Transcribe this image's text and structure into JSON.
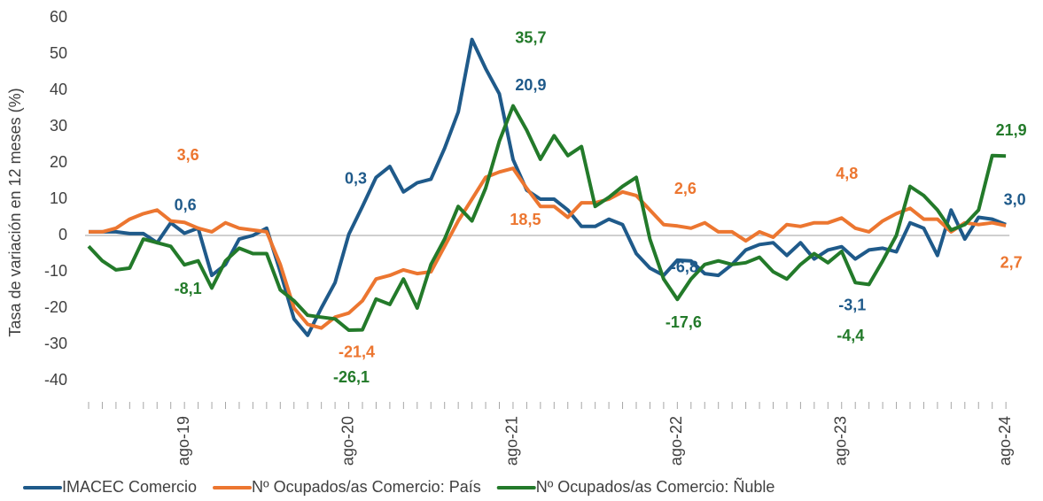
{
  "chart_data": {
    "type": "line",
    "y_label": "Tasa de variación en 12 meses (%)",
    "categories": [
      null,
      null,
      null,
      null,
      null,
      null,
      null,
      "ago-19",
      null,
      null,
      null,
      null,
      null,
      null,
      null,
      null,
      null,
      null,
      null,
      "ago-20",
      null,
      null,
      null,
      null,
      null,
      null,
      null,
      null,
      null,
      null,
      null,
      "ago-21",
      null,
      null,
      null,
      null,
      null,
      null,
      null,
      null,
      null,
      null,
      null,
      "ago-22",
      null,
      null,
      null,
      null,
      null,
      null,
      null,
      null,
      null,
      null,
      null,
      "ago-23",
      null,
      null,
      null,
      null,
      null,
      null,
      null,
      null,
      null,
      null,
      null,
      "ago-24"
    ],
    "ylim": [
      -40,
      60
    ],
    "yticks": [
      -40,
      -30,
      -20,
      -10,
      0,
      10,
      20,
      30,
      40,
      50,
      60
    ],
    "grid": false,
    "legend": "bottom",
    "series": [
      {
        "name": "IMACEC Comercio",
        "color": "#1f5a8a",
        "values": [
          1,
          1,
          1,
          0.5,
          0.5,
          -2,
          3.5,
          0.6,
          2,
          -11,
          -8,
          -1,
          0,
          2,
          -10,
          -23,
          -27.5,
          -20,
          -13,
          0.3,
          8,
          16,
          19,
          12,
          14.5,
          15.5,
          24,
          34,
          54,
          46,
          39,
          20.9,
          12.5,
          10,
          10,
          7,
          2.5,
          2.5,
          4.5,
          3,
          -5,
          -9,
          -11,
          -6.8,
          -7,
          -10.5,
          -11,
          -8,
          -4,
          -2.5,
          -2,
          -5.5,
          -2,
          -6.5,
          -4,
          -3.1,
          -6.5,
          -4,
          -3.5,
          -4.5,
          3.5,
          2,
          -5.5,
          7,
          -1,
          5,
          4.5,
          3
        ],
        "value_labels": [
          null,
          null,
          null,
          null,
          null,
          null,
          null,
          "0,6",
          null,
          null,
          null,
          null,
          null,
          null,
          null,
          null,
          null,
          null,
          null,
          "0,3",
          null,
          null,
          null,
          null,
          null,
          null,
          null,
          null,
          null,
          null,
          null,
          "20,9",
          null,
          null,
          null,
          null,
          null,
          null,
          null,
          null,
          null,
          null,
          null,
          "-6,8",
          null,
          null,
          null,
          null,
          null,
          null,
          null,
          null,
          null,
          null,
          null,
          "-3,1",
          null,
          null,
          null,
          null,
          null,
          null,
          null,
          null,
          null,
          null,
          null,
          "3,0"
        ]
      },
      {
        "name": "Nº Ocupados/as Comercio: País",
        "color": "#ec7630",
        "values": [
          1,
          1,
          2,
          4.5,
          6,
          7,
          4,
          3.6,
          2,
          1,
          3.5,
          2,
          1.5,
          1,
          -8,
          -20,
          -24.5,
          -25.5,
          -22.5,
          -21.4,
          -18,
          -12,
          -11,
          -9.5,
          -10.5,
          -10,
          -3,
          4,
          10,
          16,
          17.5,
          18.5,
          13,
          8,
          8,
          5,
          9,
          9,
          10,
          12,
          11,
          7,
          3,
          2.6,
          2,
          3.5,
          1,
          1,
          -1.5,
          1,
          -0.5,
          3,
          2.5,
          3.5,
          3.5,
          4.8,
          2,
          1,
          4,
          6,
          7.5,
          4.5,
          4.5,
          1,
          3.5,
          3,
          3.5,
          2.7
        ],
        "value_labels": [
          null,
          null,
          null,
          null,
          null,
          null,
          null,
          "3,6",
          null,
          null,
          null,
          null,
          null,
          null,
          null,
          null,
          null,
          null,
          null,
          "-21,4",
          null,
          null,
          null,
          null,
          null,
          null,
          null,
          null,
          null,
          null,
          null,
          "18,5",
          null,
          null,
          null,
          null,
          null,
          null,
          null,
          null,
          null,
          null,
          null,
          "2,6",
          null,
          null,
          null,
          null,
          null,
          null,
          null,
          null,
          null,
          null,
          null,
          "4,8",
          null,
          null,
          null,
          null,
          null,
          null,
          null,
          null,
          null,
          null,
          null,
          "2,7"
        ]
      },
      {
        "name": "Nº Ocupados/as Comercio: Ñuble",
        "color": "#237a2a",
        "values": [
          -3,
          -7,
          -9.5,
          -9,
          -1,
          -2,
          -3,
          -8.1,
          -7,
          -14.5,
          -7,
          -3.5,
          -5,
          -5,
          -15,
          -18,
          -22,
          -22.5,
          -23,
          -26.1,
          -26,
          -17.5,
          -19,
          -12,
          -20,
          -8,
          -1,
          8,
          4,
          13,
          26,
          35.7,
          29,
          21,
          27.5,
          22,
          24.5,
          8,
          10.5,
          13.5,
          16,
          -1,
          -12,
          -17.6,
          -12,
          -8,
          -7,
          -8,
          -7.5,
          -6,
          -10,
          -12,
          -8,
          -5,
          -7.5,
          -4.4,
          -13,
          -13.5,
          -7,
          0,
          13.5,
          11,
          7,
          1.5,
          3,
          7,
          22,
          21.9
        ],
        "value_labels": [
          null,
          null,
          null,
          null,
          null,
          null,
          null,
          "-8,1",
          null,
          null,
          null,
          null,
          null,
          null,
          null,
          null,
          null,
          null,
          null,
          "-26,1",
          null,
          null,
          null,
          null,
          null,
          null,
          null,
          null,
          null,
          null,
          null,
          "35,7",
          null,
          null,
          null,
          null,
          null,
          null,
          null,
          null,
          null,
          null,
          null,
          "-17,6",
          null,
          null,
          null,
          null,
          null,
          null,
          null,
          null,
          null,
          null,
          null,
          "-4,4",
          null,
          null,
          null,
          null,
          null,
          null,
          null,
          null,
          null,
          null,
          null,
          "21,9"
        ]
      }
    ]
  }
}
